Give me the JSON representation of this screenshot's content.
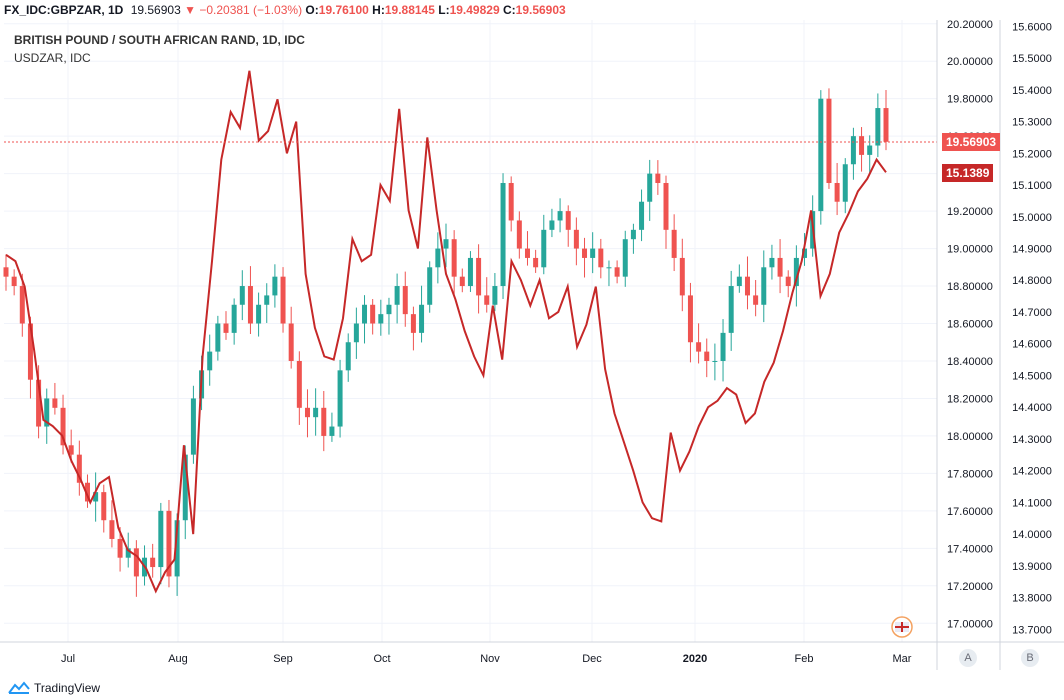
{
  "header": {
    "symbol": "FX_IDC:GBPZAR, 1D",
    "last": "19.56903",
    "arrow": "▼",
    "change": "−0.20381 (−1.03%)",
    "o_label": "O:",
    "o": "19.76100",
    "h_label": "H:",
    "h": "19.88145",
    "l_label": "L:",
    "l": "19.49829",
    "c_label": "C:",
    "c": "19.56903"
  },
  "legend": {
    "main": "BRITISH POUND / SOUTH AFRICAN RAND, 1D, IDC",
    "overlay": "USDZAR, IDC"
  },
  "price_tags": {
    "gbpzar": "19.56903",
    "usdzar": "15.1389",
    "gbpzar_color": "#ef5350",
    "usdzar_color": "#c62828"
  },
  "axis_buttons": {
    "a": "A",
    "b": "B"
  },
  "footer": {
    "brand": "TradingView",
    "logo_icon": "tradingview-logo-icon"
  },
  "colors": {
    "up": "#26a69a",
    "down": "#ef5350",
    "overlay_line": "#c62828",
    "grid": "#f0f3fa"
  },
  "chart_data": {
    "type": "candlestick+line",
    "x_ticks": [
      "Jul",
      "Aug",
      "Sep",
      "Oct",
      "Nov",
      "Dec",
      "2020",
      "Feb",
      "Mar"
    ],
    "left_axis_ticks": [
      "20.20000",
      "20.00000",
      "19.80000",
      "19.60000",
      "19.40000",
      "19.20000",
      "19.00000",
      "18.80000",
      "18.60000",
      "18.40000",
      "18.20000",
      "18.00000",
      "17.80000",
      "17.60000",
      "17.40000",
      "17.20000",
      "17.00000"
    ],
    "right_axis_ticks": [
      "15.6000",
      "15.5000",
      "15.4000",
      "15.3000",
      "15.2000",
      "15.1000",
      "15.0000",
      "14.9000",
      "14.8000",
      "14.7000",
      "14.6000",
      "14.5000",
      "14.4000",
      "14.3000",
      "14.2000",
      "14.1000",
      "14.0000",
      "13.9000",
      "13.8000",
      "13.7000"
    ],
    "left_ylim": [
      16.9,
      20.22
    ],
    "right_ylim": [
      13.66,
      15.62
    ],
    "gbpzar_close_series": [
      18.85,
      18.8,
      18.6,
      18.3,
      18.05,
      18.2,
      18.15,
      17.95,
      17.9,
      17.75,
      17.65,
      17.7,
      17.55,
      17.45,
      17.35,
      17.4,
      17.25,
      17.35,
      17.3,
      17.6,
      17.25,
      17.55,
      17.9,
      18.2,
      18.35,
      18.45,
      18.6,
      18.55,
      18.7,
      18.8,
      18.6,
      18.7,
      18.75,
      18.85,
      18.6,
      18.4,
      18.15,
      18.1,
      18.15,
      18.0,
      18.05,
      18.35,
      18.5,
      18.6,
      18.7,
      18.6,
      18.65,
      18.7,
      18.8,
      18.65,
      18.55,
      18.7,
      18.9,
      19.0,
      19.05,
      18.85,
      18.8,
      18.95,
      18.75,
      18.7,
      18.8,
      19.35,
      19.15,
      19.0,
      18.95,
      18.9,
      19.1,
      19.15,
      19.2,
      19.1,
      19.0,
      18.95,
      19.0,
      18.9,
      18.9,
      18.85,
      19.05,
      19.1,
      19.25,
      19.4,
      19.35,
      19.1,
      18.95,
      18.75,
      18.5,
      18.45,
      18.4,
      18.4,
      18.55,
      18.8,
      18.85,
      18.75,
      18.7,
      18.9,
      18.95,
      18.85,
      18.8,
      18.95,
      19.0,
      19.2,
      19.8,
      19.35,
      19.25,
      19.45,
      19.6,
      19.5,
      19.55,
      19.75,
      19.57
    ],
    "usdzar_close_series": [
      14.88,
      14.86,
      14.78,
      14.58,
      14.36,
      14.34,
      14.31,
      14.23,
      14.17,
      14.1,
      14.16,
      14.18,
      14.02,
      13.95,
      13.93,
      13.89,
      13.82,
      13.88,
      13.92,
      14.28,
      14.0,
      14.56,
      14.86,
      15.18,
      15.33,
      15.28,
      15.46,
      15.24,
      15.27,
      15.37,
      15.2,
      15.3,
      14.82,
      14.65,
      14.56,
      14.55,
      14.68,
      14.93,
      14.86,
      14.88,
      15.1,
      15.05,
      15.34,
      15.02,
      14.9,
      15.25,
      15.02,
      14.82,
      14.74,
      14.64,
      14.56,
      14.5,
      14.72,
      14.55,
      14.86,
      14.8,
      14.72,
      14.8,
      14.68,
      14.7,
      14.78,
      14.59,
      14.66,
      14.78,
      14.52,
      14.38,
      14.29,
      14.2,
      14.1,
      14.05,
      14.04,
      14.32,
      14.2,
      14.26,
      14.34,
      14.4,
      14.42,
      14.46,
      14.44,
      14.35,
      14.38,
      14.48,
      14.54,
      14.64,
      14.76,
      14.86,
      15.02,
      14.75,
      14.82,
      14.95,
      15.01,
      15.08,
      15.12,
      15.18,
      15.14
    ]
  }
}
